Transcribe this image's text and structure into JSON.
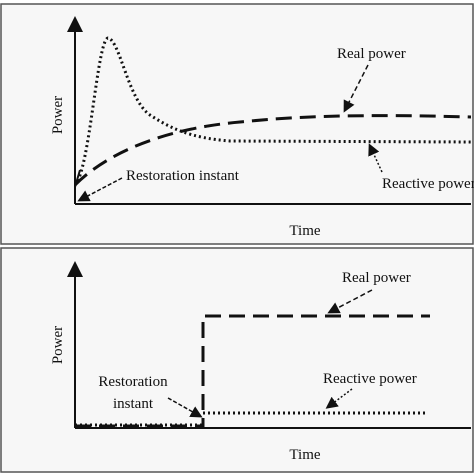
{
  "panels": [
    {
      "y_axis_label": "Power",
      "x_axis_label": "Time",
      "real_label": "Real power",
      "reactive_label": "Reactive power",
      "restoration_label": "Restoration instant"
    },
    {
      "y_axis_label": "Power",
      "x_axis_label": "Time",
      "real_label": "Real power",
      "reactive_label": "Reactive power",
      "restoration_label": [
        "Restoration",
        "instant"
      ]
    }
  ]
}
